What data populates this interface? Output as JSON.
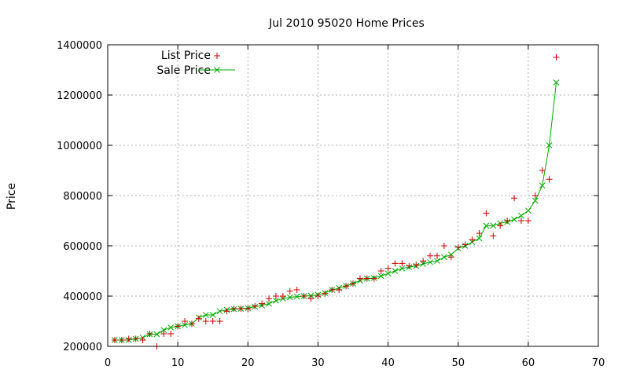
{
  "chart_data": {
    "type": "scatter",
    "title": "Jul 2010 95020 Home Prices",
    "xlabel": "",
    "ylabel": "Price",
    "xlim": [
      0,
      70
    ],
    "ylim": [
      200000,
      1400000
    ],
    "x_ticks": [
      0,
      10,
      20,
      30,
      40,
      50,
      60,
      70
    ],
    "y_ticks": [
      200000,
      400000,
      600000,
      800000,
      1000000,
      1200000,
      1400000
    ],
    "grid": true,
    "legend_position": "top-left",
    "series": [
      {
        "name": "List Price",
        "kind": "points",
        "marker": "plus",
        "color": "#cc0000",
        "x": [
          1,
          2,
          3,
          4,
          5,
          6,
          7,
          8,
          9,
          10,
          11,
          12,
          13,
          14,
          15,
          16,
          17,
          18,
          19,
          20,
          21,
          22,
          23,
          24,
          25,
          26,
          27,
          28,
          29,
          30,
          31,
          32,
          33,
          34,
          35,
          36,
          37,
          38,
          39,
          40,
          41,
          42,
          43,
          44,
          45,
          46,
          47,
          48,
          49,
          50,
          51,
          52,
          53,
          54,
          55,
          56,
          57,
          58,
          59,
          60,
          61,
          62,
          63,
          64
        ],
        "values": [
          225000,
          225000,
          230000,
          230000,
          225000,
          250000,
          200000,
          250000,
          250000,
          280000,
          300000,
          290000,
          310000,
          300000,
          300000,
          300000,
          340000,
          350000,
          350000,
          350000,
          360000,
          370000,
          390000,
          400000,
          400000,
          420000,
          425000,
          400000,
          390000,
          400000,
          410000,
          425000,
          425000,
          440000,
          450000,
          470000,
          470000,
          470000,
          500000,
          510000,
          530000,
          530000,
          520000,
          525000,
          540000,
          560000,
          560000,
          600000,
          555000,
          595000,
          605000,
          625000,
          650000,
          730000,
          640000,
          680000,
          700000,
          790000,
          700000,
          700000,
          800000,
          900000,
          865000,
          1350000
        ]
      },
      {
        "name": "Sale Price",
        "kind": "line-points",
        "marker": "cross",
        "color": "#00aa00",
        "x": [
          1,
          2,
          3,
          4,
          5,
          6,
          7,
          8,
          9,
          10,
          11,
          12,
          13,
          14,
          15,
          16,
          17,
          18,
          19,
          20,
          21,
          22,
          23,
          24,
          25,
          26,
          27,
          28,
          29,
          30,
          31,
          32,
          33,
          34,
          35,
          36,
          37,
          38,
          39,
          40,
          41,
          42,
          43,
          44,
          45,
          46,
          47,
          48,
          49,
          50,
          51,
          52,
          53,
          54,
          55,
          56,
          57,
          58,
          59,
          60,
          61,
          62,
          63,
          64
        ],
        "values": [
          225000,
          225000,
          225000,
          230000,
          235000,
          248000,
          248000,
          265000,
          275000,
          280000,
          285000,
          290000,
          315000,
          325000,
          325000,
          340000,
          345000,
          348000,
          350000,
          352000,
          358000,
          363000,
          370000,
          382000,
          390000,
          395000,
          398000,
          400000,
          402000,
          405000,
          412000,
          425000,
          432000,
          440000,
          450000,
          462000,
          470000,
          472000,
          480000,
          490000,
          500000,
          510000,
          515000,
          520000,
          528000,
          535000,
          540000,
          555000,
          565000,
          590000,
          600000,
          615000,
          630000,
          680000,
          680000,
          690000,
          695000,
          705000,
          720000,
          740000,
          780000,
          840000,
          1000000,
          1250000
        ]
      }
    ]
  }
}
